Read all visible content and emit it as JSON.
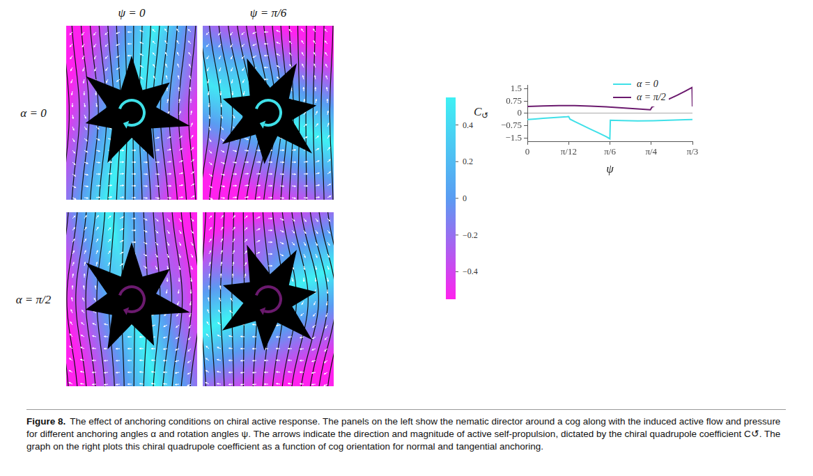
{
  "figure": {
    "label": "Figure 8.",
    "caption": "The effect of anchoring conditions on chiral active response. The panels on the left show the nematic director around a cog along with the induced active flow and pressure for different anchoring angles α and rotation angles ψ. The arrows indicate the direction and magnitude of active self-propulsion, dictated by the chiral quadrupole coefficient C↺. The graph on the right plots this chiral quadrupole coefficient as a function of cog orientation for normal and tangential anchoring."
  },
  "panels": {
    "column_titles": [
      "ψ = 0",
      "ψ = π/6"
    ],
    "row_titles": [
      "α = 0",
      "α = π/2"
    ]
  },
  "colorbar": {
    "range": [
      -0.55,
      0.55
    ],
    "ticks": [
      0.4,
      0.2,
      0,
      {
        "value": -0.2,
        "label": "−0.2"
      },
      {
        "value": -0.4,
        "label": "−0.4"
      }
    ]
  },
  "chart_data": {
    "type": "line",
    "x_label": "ψ",
    "y_label": {
      "text": "C",
      "subscript": "↺"
    },
    "xlim": [
      0,
      1.0472
    ],
    "xticks": [
      0,
      {
        "value": 0.2618,
        "label": "π/12"
      },
      {
        "value": 0.5236,
        "label": "π/6"
      },
      {
        "value": 0.7854,
        "label": "π/4"
      },
      {
        "value": 1.0472,
        "label": "π/3"
      }
    ],
    "ylim": [
      -1.7,
      1.7
    ],
    "yticks": [
      {
        "value": -1.5,
        "label": "−1.5"
      },
      {
        "value": -0.75,
        "label": "−0.75"
      },
      0,
      0.75,
      1.5
    ],
    "grid": false,
    "legend": "lower right",
    "series": [
      {
        "name": "α = 0",
        "color": "#3fe0e8",
        "x": [
          0,
          0.05,
          0.1,
          0.15,
          0.2,
          0.25,
          0.262,
          0.27,
          0.3,
          0.35,
          0.4,
          0.45,
          0.5,
          0.523,
          0.526,
          0.6,
          0.7,
          0.8,
          0.9,
          1.0,
          1.047
        ],
        "values": [
          -0.38,
          -0.34,
          -0.3,
          -0.27,
          -0.24,
          -0.21,
          -0.2,
          -0.35,
          -0.5,
          -0.73,
          -0.96,
          -1.19,
          -1.42,
          -1.55,
          -0.42,
          -0.44,
          -0.46,
          -0.45,
          -0.42,
          -0.39,
          -0.37
        ]
      },
      {
        "name": "α = π/2",
        "color": "#6b1a6e",
        "x": [
          0,
          0.1,
          0.2,
          0.3,
          0.4,
          0.5,
          0.6,
          0.7,
          0.78,
          0.79,
          0.85,
          0.9,
          0.95,
          1.0,
          1.045,
          1.047
        ],
        "values": [
          0.42,
          0.45,
          0.47,
          0.47,
          0.44,
          0.4,
          0.34,
          0.27,
          0.22,
          0.38,
          0.65,
          0.88,
          1.1,
          1.35,
          1.58,
          0.42
        ]
      }
    ]
  }
}
